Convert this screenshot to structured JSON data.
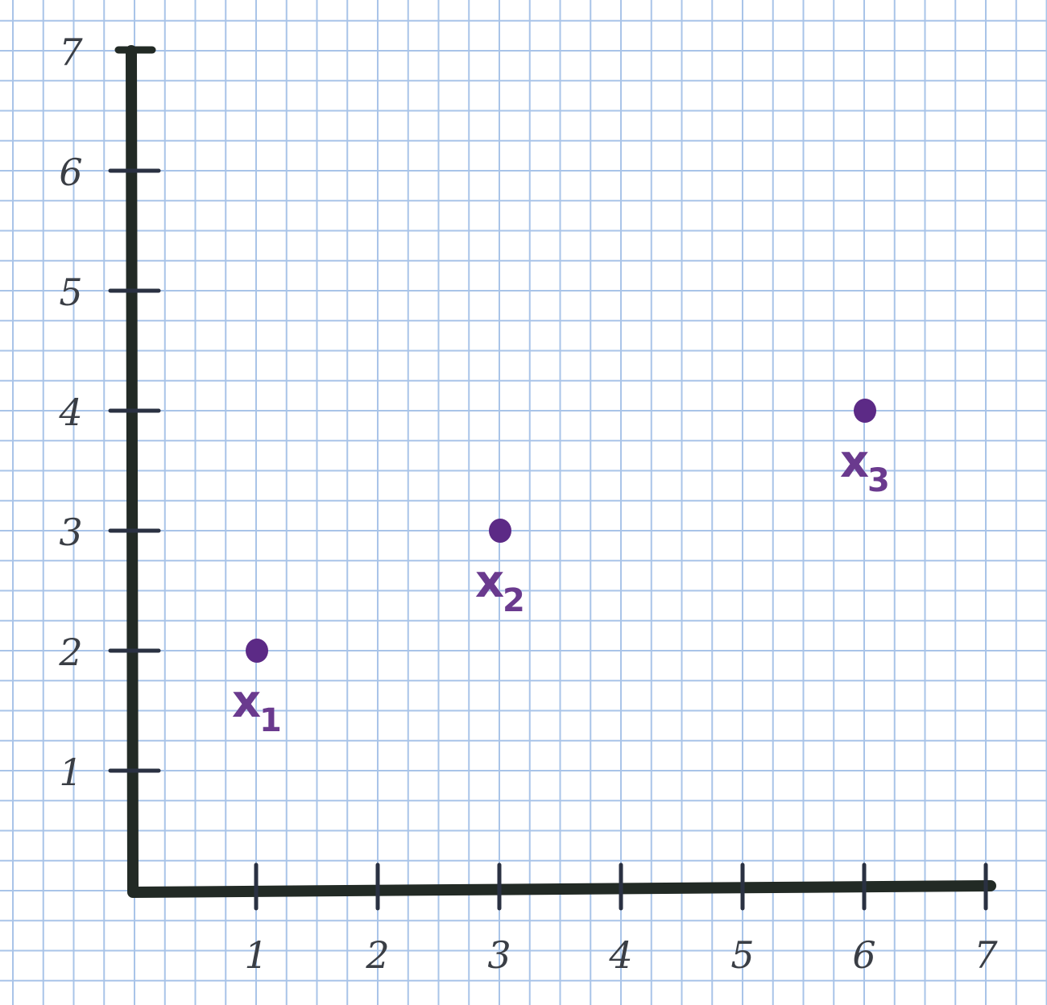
{
  "chart_data": {
    "type": "scatter",
    "title": "",
    "xlabel": "",
    "ylabel": "",
    "xlim": [
      0,
      7
    ],
    "ylim": [
      0,
      7
    ],
    "grid": true,
    "x_ticks": [
      "1",
      "2",
      "3",
      "4",
      "5",
      "6",
      "7"
    ],
    "y_ticks": [
      "1",
      "2",
      "3",
      "4",
      "5",
      "6",
      "7"
    ],
    "points": [
      {
        "label": "x",
        "subscript": "1",
        "x": 1,
        "y": 2
      },
      {
        "label": "x",
        "subscript": "2",
        "x": 3,
        "y": 3
      },
      {
        "label": "x",
        "subscript": "3",
        "x": 6,
        "y": 4
      }
    ],
    "colors": {
      "axis": "#222a25",
      "point": "#5c2a86",
      "grid": "#a9c4e8",
      "paper": "#ffffff"
    }
  }
}
